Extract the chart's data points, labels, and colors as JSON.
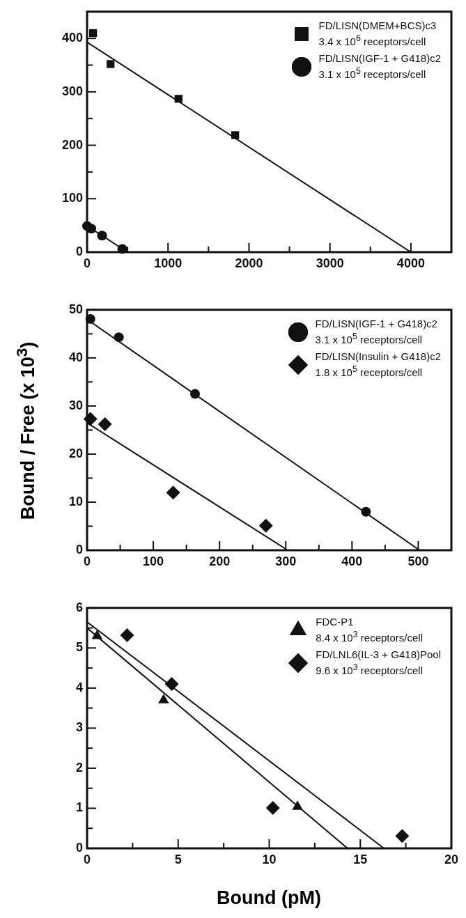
{
  "chart_data": [
    {
      "type": "scatter",
      "xlim": [
        0,
        4500
      ],
      "ylim": [
        0,
        450
      ],
      "xticks": [
        0,
        {
          "value": 500,
          "label": null
        },
        1000,
        {
          "value": 1500,
          "label": null
        },
        2000,
        {
          "value": 2500,
          "label": null
        },
        3000,
        {
          "value": 3500,
          "label": null
        },
        4000
      ],
      "yticks": [
        0,
        {
          "value": 50,
          "label": null
        },
        100,
        {
          "value": 150,
          "label": null
        },
        200,
        {
          "value": 250,
          "label": null
        },
        300,
        {
          "value": 350,
          "label": null
        },
        400
      ],
      "legend": "top right",
      "series": [
        {
          "name": "FD/LISN(DMEM+BCS)c3\n3.4 x 10$^{6}$ receptors/cell",
          "color": "#111111",
          "marker": "square",
          "x": [
            74,
            290,
            1130,
            1830
          ],
          "values": [
            410,
            352,
            287,
            219
          ]
        },
        {
          "name": "FD/LISN(IGF-1 + G418)c2\n3.1 x 10$^{5}$ receptors/cell",
          "color": "#111111",
          "marker": "circle",
          "x": [
            0,
            52,
            185,
            435
          ],
          "values": [
            49,
            44,
            31,
            6
          ]
        },
        {
          "type": "line",
          "color": "#111111",
          "marker": "none",
          "x": [
            0,
            4000
          ],
          "values": [
            393,
            0
          ]
        },
        {
          "type": "line",
          "color": "#111111",
          "marker": "none",
          "x": [
            0,
            500
          ],
          "values": [
            49,
            0
          ]
        }
      ]
    },
    {
      "type": "scatter",
      "ylabel": "Bound / Free (x 10$^{3}$)",
      "xlim": [
        0,
        550
      ],
      "ylim": [
        0,
        50
      ],
      "xticks": [
        0,
        {
          "value": 50,
          "label": null
        },
        100,
        {
          "value": 150,
          "label": null
        },
        200,
        {
          "value": 250,
          "label": null
        },
        300,
        {
          "value": 350,
          "label": null
        },
        400,
        {
          "value": 450,
          "label": null
        },
        500
      ],
      "yticks": [
        0,
        {
          "value": 5,
          "label": null
        },
        10,
        {
          "value": 15,
          "label": null
        },
        20,
        {
          "value": 25,
          "label": null
        },
        30,
        {
          "value": 35,
          "label": null
        },
        40,
        {
          "value": 45,
          "label": null
        },
        50
      ],
      "legend": "top right",
      "series": [
        {
          "name": "FD/LISN(IGF-1 + G418)c2\n3.1 x 10$^{5}$ receptors/cell",
          "color": "#111111",
          "marker": "circle",
          "x": [
            5,
            48,
            163,
            421
          ],
          "values": [
            48.1,
            44.3,
            32.5,
            8.0
          ]
        },
        {
          "name": "FD/LISN(Insulin + G418)c2\n1.8 x 10$^{5}$ receptors/cell",
          "color": "#111111",
          "marker": "diamond",
          "x": [
            5,
            27,
            130,
            270
          ],
          "values": [
            27.3,
            26.2,
            12.0,
            5.1
          ]
        },
        {
          "type": "line",
          "color": "#111111",
          "marker": "none",
          "x": [
            0,
            502
          ],
          "values": [
            48,
            0
          ]
        },
        {
          "type": "line",
          "color": "#111111",
          "marker": "none",
          "x": [
            0,
            303
          ],
          "values": [
            26.5,
            0
          ]
        }
      ]
    },
    {
      "type": "scatter",
      "xlabel": "Bound (pM)",
      "xlim": [
        0,
        20
      ],
      "ylim": [
        0,
        6
      ],
      "xticks": [
        0,
        {
          "value": 2.5,
          "label": null
        },
        5,
        {
          "value": 7.5,
          "label": null
        },
        10,
        {
          "value": 12.5,
          "label": null
        },
        15,
        {
          "value": 17.5,
          "label": null
        },
        20
      ],
      "yticks": [
        0,
        {
          "value": 0.5,
          "label": null
        },
        1,
        {
          "value": 1.5,
          "label": null
        },
        2,
        {
          "value": 2.5,
          "label": null
        },
        3,
        {
          "value": 3.5,
          "label": null
        },
        4,
        {
          "value": 4.5,
          "label": null
        },
        5,
        {
          "value": 5.5,
          "label": null
        },
        6
      ],
      "legend": "top right",
      "series": [
        {
          "name": "FDC-P1\n8.4 x 10$^{3}$ receptors/cell",
          "color": "#111111",
          "marker": "triangle",
          "x": [
            0.55,
            4.2,
            11.55
          ],
          "values": [
            5.3,
            3.7,
            1.04
          ]
        },
        {
          "name": "FD/LNL6(IL-3 + G418)Pool\n9.6 x 10$^{3}$ receptors/cell",
          "color": "#111111",
          "marker": "diamond",
          "x": [
            2.2,
            4.65,
            10.2,
            17.3
          ],
          "values": [
            5.32,
            4.1,
            1.01,
            0.31
          ]
        },
        {
          "type": "line",
          "color": "#111111",
          "marker": "none",
          "x": [
            0,
            14.3
          ],
          "values": [
            5.5,
            0
          ]
        },
        {
          "type": "line",
          "color": "#111111",
          "marker": "none",
          "x": [
            0,
            16.3
          ],
          "values": [
            5.65,
            0
          ]
        }
      ]
    }
  ]
}
